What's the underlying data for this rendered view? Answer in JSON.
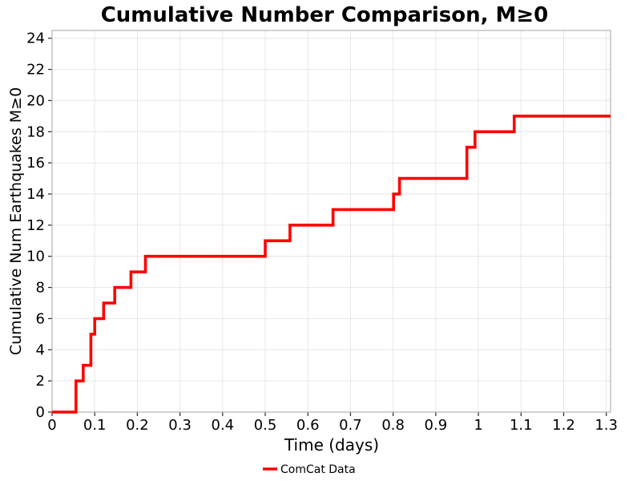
{
  "chart_data": {
    "type": "line",
    "subtype": "step-post",
    "title": "Cumulative Number Comparison, M≥0",
    "xlabel": "Time (days)",
    "ylabel": "Cumulative Num Earthquakes M≥0",
    "xlim": [
      0,
      1.31
    ],
    "ylim": [
      0,
      24.5
    ],
    "grid": true,
    "x_tick_values": [
      0,
      0.1,
      0.2,
      0.3,
      0.4,
      0.5,
      0.6,
      0.7,
      0.8,
      0.9,
      1,
      1.1,
      1.2,
      1.3
    ],
    "x_tick_labels": [
      "0",
      "0.1",
      "0.2",
      "0.3",
      "0.4",
      "0.5",
      "0.6",
      "0.7",
      "0.8",
      "0.9",
      "1",
      "1.1",
      "1.2",
      "1.3"
    ],
    "y_tick_values": [
      0,
      2,
      4,
      6,
      8,
      10,
      12,
      14,
      16,
      18,
      20,
      22,
      24
    ],
    "y_tick_labels": [
      "0",
      "2",
      "4",
      "6",
      "8",
      "10",
      "12",
      "14",
      "16",
      "18",
      "20",
      "22",
      "24"
    ],
    "legend": {
      "position": "bottom-center",
      "entries": [
        {
          "label": "ComCat Data",
          "color": "#ff0000"
        }
      ]
    },
    "series": [
      {
        "name": "ComCat Data",
        "color": "#ff0000",
        "step": "post",
        "points": [
          [
            0,
            0
          ],
          [
            0.056,
            2
          ],
          [
            0.073,
            3
          ],
          [
            0.091,
            5
          ],
          [
            0.1,
            6
          ],
          [
            0.121,
            7
          ],
          [
            0.147,
            8
          ],
          [
            0.185,
            9
          ],
          [
            0.219,
            10
          ],
          [
            0.5,
            11
          ],
          [
            0.558,
            12
          ],
          [
            0.659,
            13
          ],
          [
            0.801,
            14
          ],
          [
            0.815,
            15
          ],
          [
            0.973,
            17
          ],
          [
            0.992,
            18
          ],
          [
            1.084,
            19
          ]
        ],
        "x_end": 1.31,
        "final_value": 19
      }
    ],
    "colors": {
      "line": "#ff0000",
      "grid": "#e6e6e6",
      "frame": "#b2b2b2",
      "tick": "#262626",
      "text": "#000000"
    }
  }
}
